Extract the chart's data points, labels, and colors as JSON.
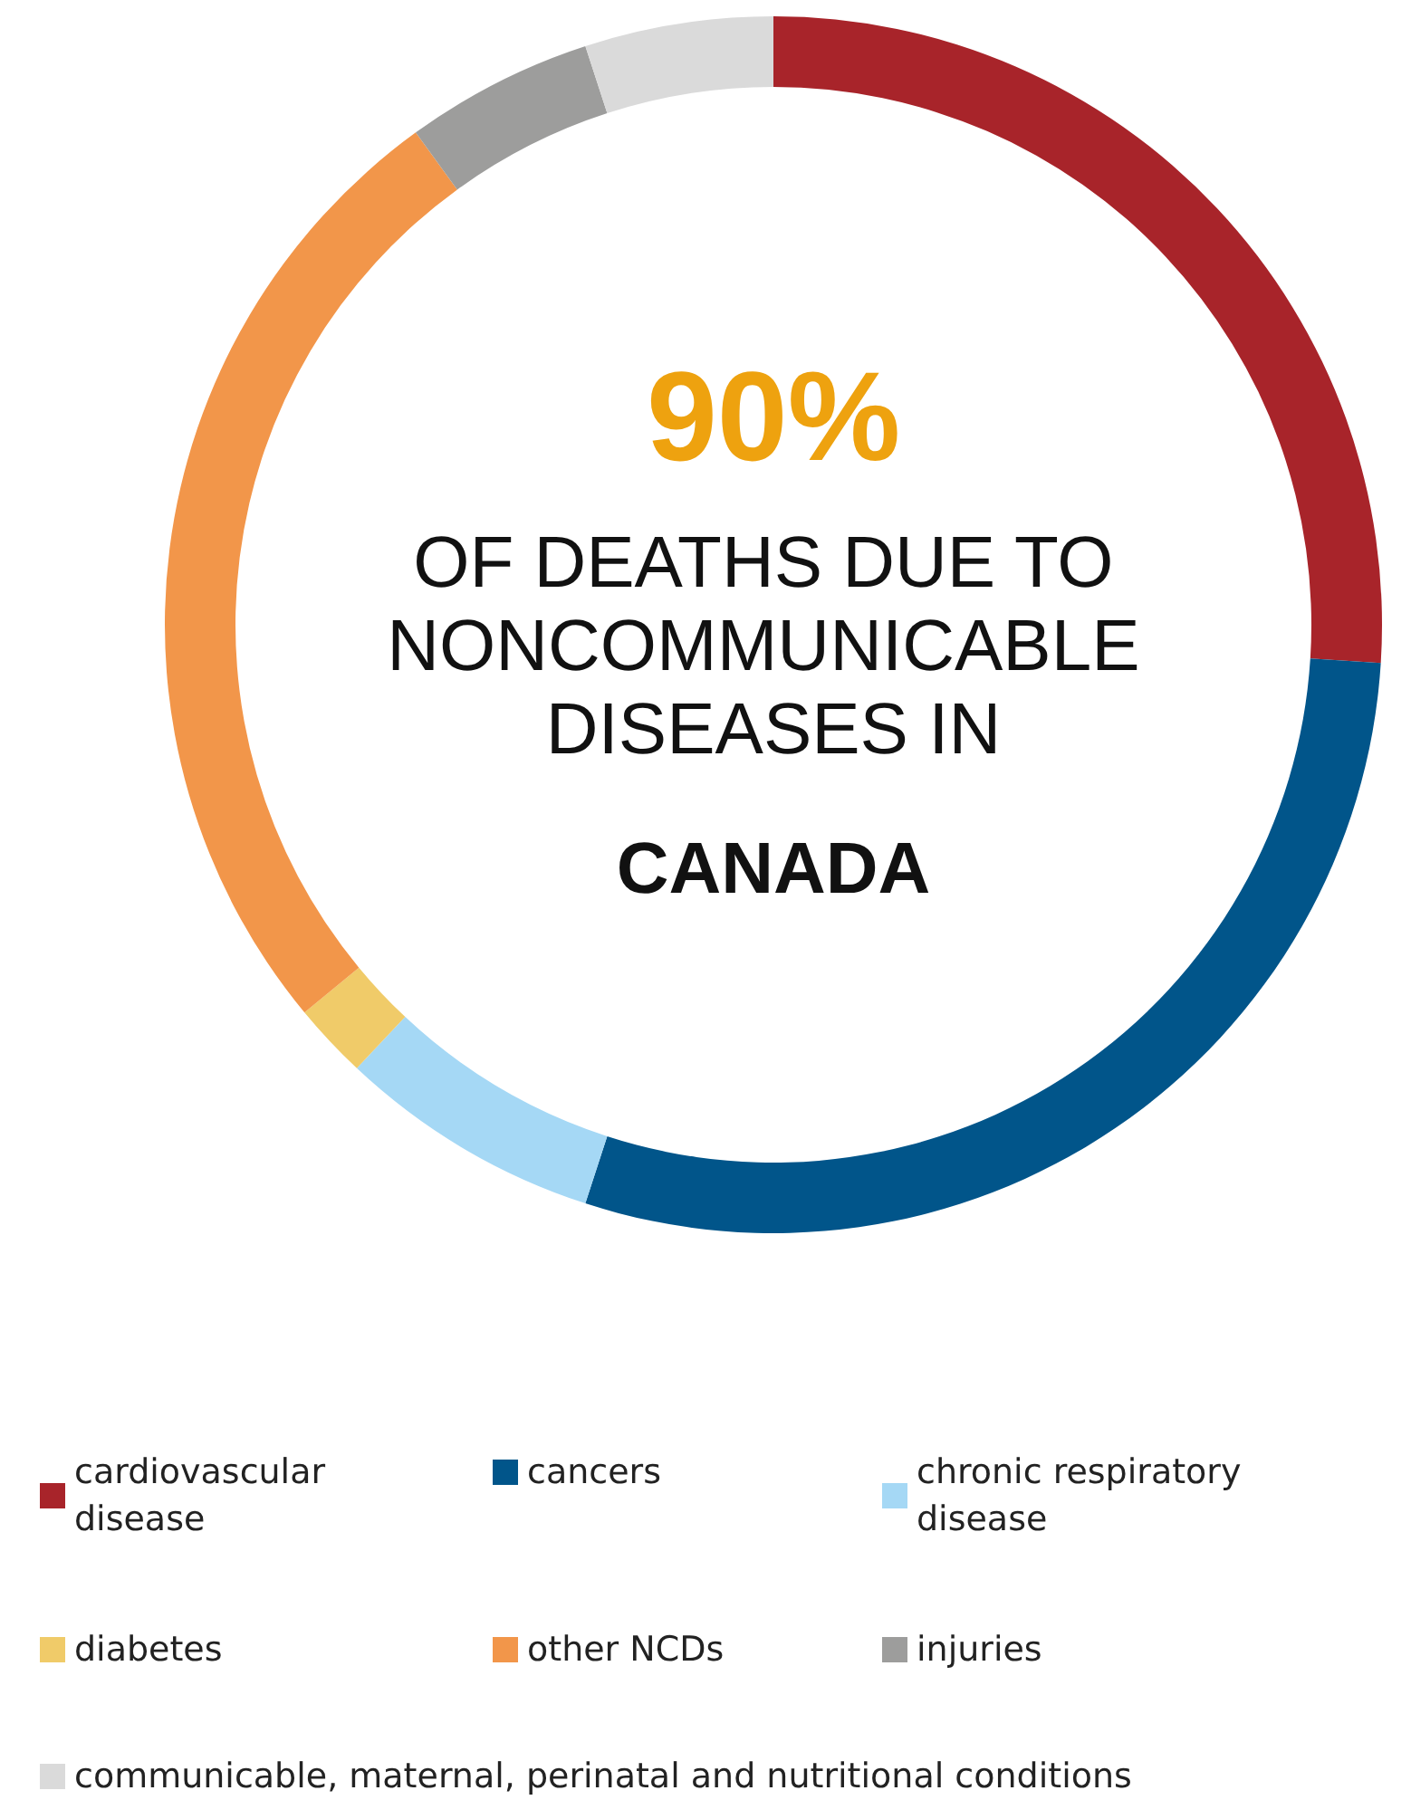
{
  "chart_data": {
    "type": "donut",
    "categories": [
      "cardiovascular disease",
      "cancers",
      "chronic respiratory disease",
      "diabetes",
      "other NCDs",
      "injuries",
      "communicable, maternal, perinatal and nutritional conditions"
    ],
    "values": [
      26,
      29,
      7,
      2,
      26,
      5,
      5
    ],
    "colors": [
      "#a8242a",
      "#01558a",
      "#a5d8f5",
      "#f0cb69",
      "#f2964a",
      "#9d9d9c",
      "#dadada"
    ],
    "annotations": [
      "90%",
      "OF DEATHS DUE TO NONCOMMUNICABLE DISEASES IN",
      "CANADA"
    ],
    "legend": "bottom"
  }
}
